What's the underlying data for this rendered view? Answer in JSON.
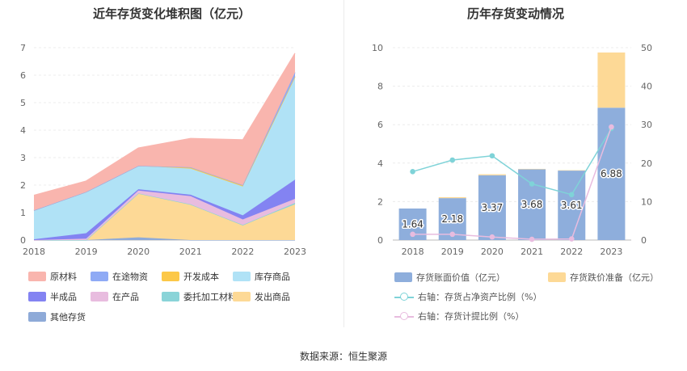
{
  "left_title": "近年存货变化堆积图（亿元）",
  "right_title": "历年存货变动情况",
  "source": "数据来源：恒生聚源",
  "chart_data": [
    {
      "type": "area",
      "stacked": true,
      "title": "近年存货变化堆积图（亿元）",
      "categories": [
        "2018",
        "2019",
        "2020",
        "2021",
        "2022",
        "2023"
      ],
      "ylim": [
        0,
        7
      ],
      "yticks": [
        "0",
        "1",
        "2",
        "3",
        "4",
        "5",
        "6",
        "7"
      ],
      "grid": true,
      "legend_position": "bottom",
      "series": [
        {
          "name": "其他存货",
          "color": "#8eaad8",
          "values": [
            0.0,
            0.0,
            0.1,
            0.0,
            0.0,
            0.0
          ]
        },
        {
          "name": "发出商品",
          "color": "#fdd996",
          "values": [
            0.0,
            0.0,
            1.6,
            1.3,
            0.55,
            1.3
          ]
        },
        {
          "name": "委托加工材料",
          "color": "#8ad4d8",
          "values": [
            0.0,
            0.0,
            0.0,
            0.0,
            0.0,
            0.05
          ]
        },
        {
          "name": "在产品",
          "color": "#e8bcdf",
          "values": [
            0.0,
            0.05,
            0.1,
            0.3,
            0.2,
            0.15
          ]
        },
        {
          "name": "半成品",
          "color": "#8383f2",
          "values": [
            0.03,
            0.2,
            0.05,
            0.05,
            0.15,
            0.7
          ]
        },
        {
          "name": "库存商品",
          "color": "#b0e2f6",
          "values": [
            1.05,
            1.5,
            0.85,
            0.95,
            1.05,
            3.75
          ]
        },
        {
          "name": "开发成本",
          "color": "#fcc848",
          "values": [
            0.0,
            0.0,
            0.0,
            0.05,
            0.05,
            0.0
          ]
        },
        {
          "name": "在途物资",
          "color": "#8faaf5",
          "values": [
            0.0,
            0.0,
            0.0,
            0.0,
            0.0,
            0.15
          ]
        },
        {
          "name": "原材料",
          "color": "#f9b5ae",
          "values": [
            0.55,
            0.4,
            0.65,
            1.05,
            1.65,
            0.7
          ]
        }
      ],
      "legend_order": [
        "原材料",
        "在途物资",
        "开发成本",
        "库存商品",
        "半成品",
        "在产品",
        "委托加工材料",
        "发出商品",
        "其他存货"
      ]
    },
    {
      "type": "bar",
      "stacked": true,
      "title": "历年存货变动情况",
      "categories": [
        "2018",
        "2019",
        "2020",
        "2021",
        "2022",
        "2023"
      ],
      "ylim": [
        0,
        10
      ],
      "yticks": [
        "0",
        "2",
        "4",
        "6",
        "8",
        "10"
      ],
      "y2lim": [
        0,
        50
      ],
      "y2ticks": [
        "0",
        "10",
        "20",
        "30",
        "40",
        "50"
      ],
      "grid": true,
      "legend_position": "bottom",
      "bar_series": [
        {
          "name": "存货账面价值（亿元）",
          "color": "#8eaedc",
          "values": [
            1.64,
            2.18,
            3.37,
            3.68,
            3.61,
            6.88
          ],
          "labels": [
            "1.64",
            "2.18",
            "3.37",
            "3.68",
            "3.61",
            "6.88"
          ]
        },
        {
          "name": "存货跌价准备（亿元）",
          "color": "#fdd996",
          "values": [
            0.0,
            0.05,
            0.05,
            0.02,
            0.02,
            2.87
          ]
        }
      ],
      "line_series": [
        {
          "name": "右轴：存货占净资产比例（%）",
          "color": "#7fd3d8",
          "axis": "right",
          "values": [
            17.8,
            20.8,
            21.9,
            14.6,
            11.8,
            29.0
          ]
        },
        {
          "name": "右轴：存货计提比例（%）",
          "color": "#e8bcdf",
          "axis": "right",
          "values": [
            1.5,
            1.5,
            0.8,
            0.2,
            0.3,
            29.4
          ]
        }
      ]
    }
  ]
}
